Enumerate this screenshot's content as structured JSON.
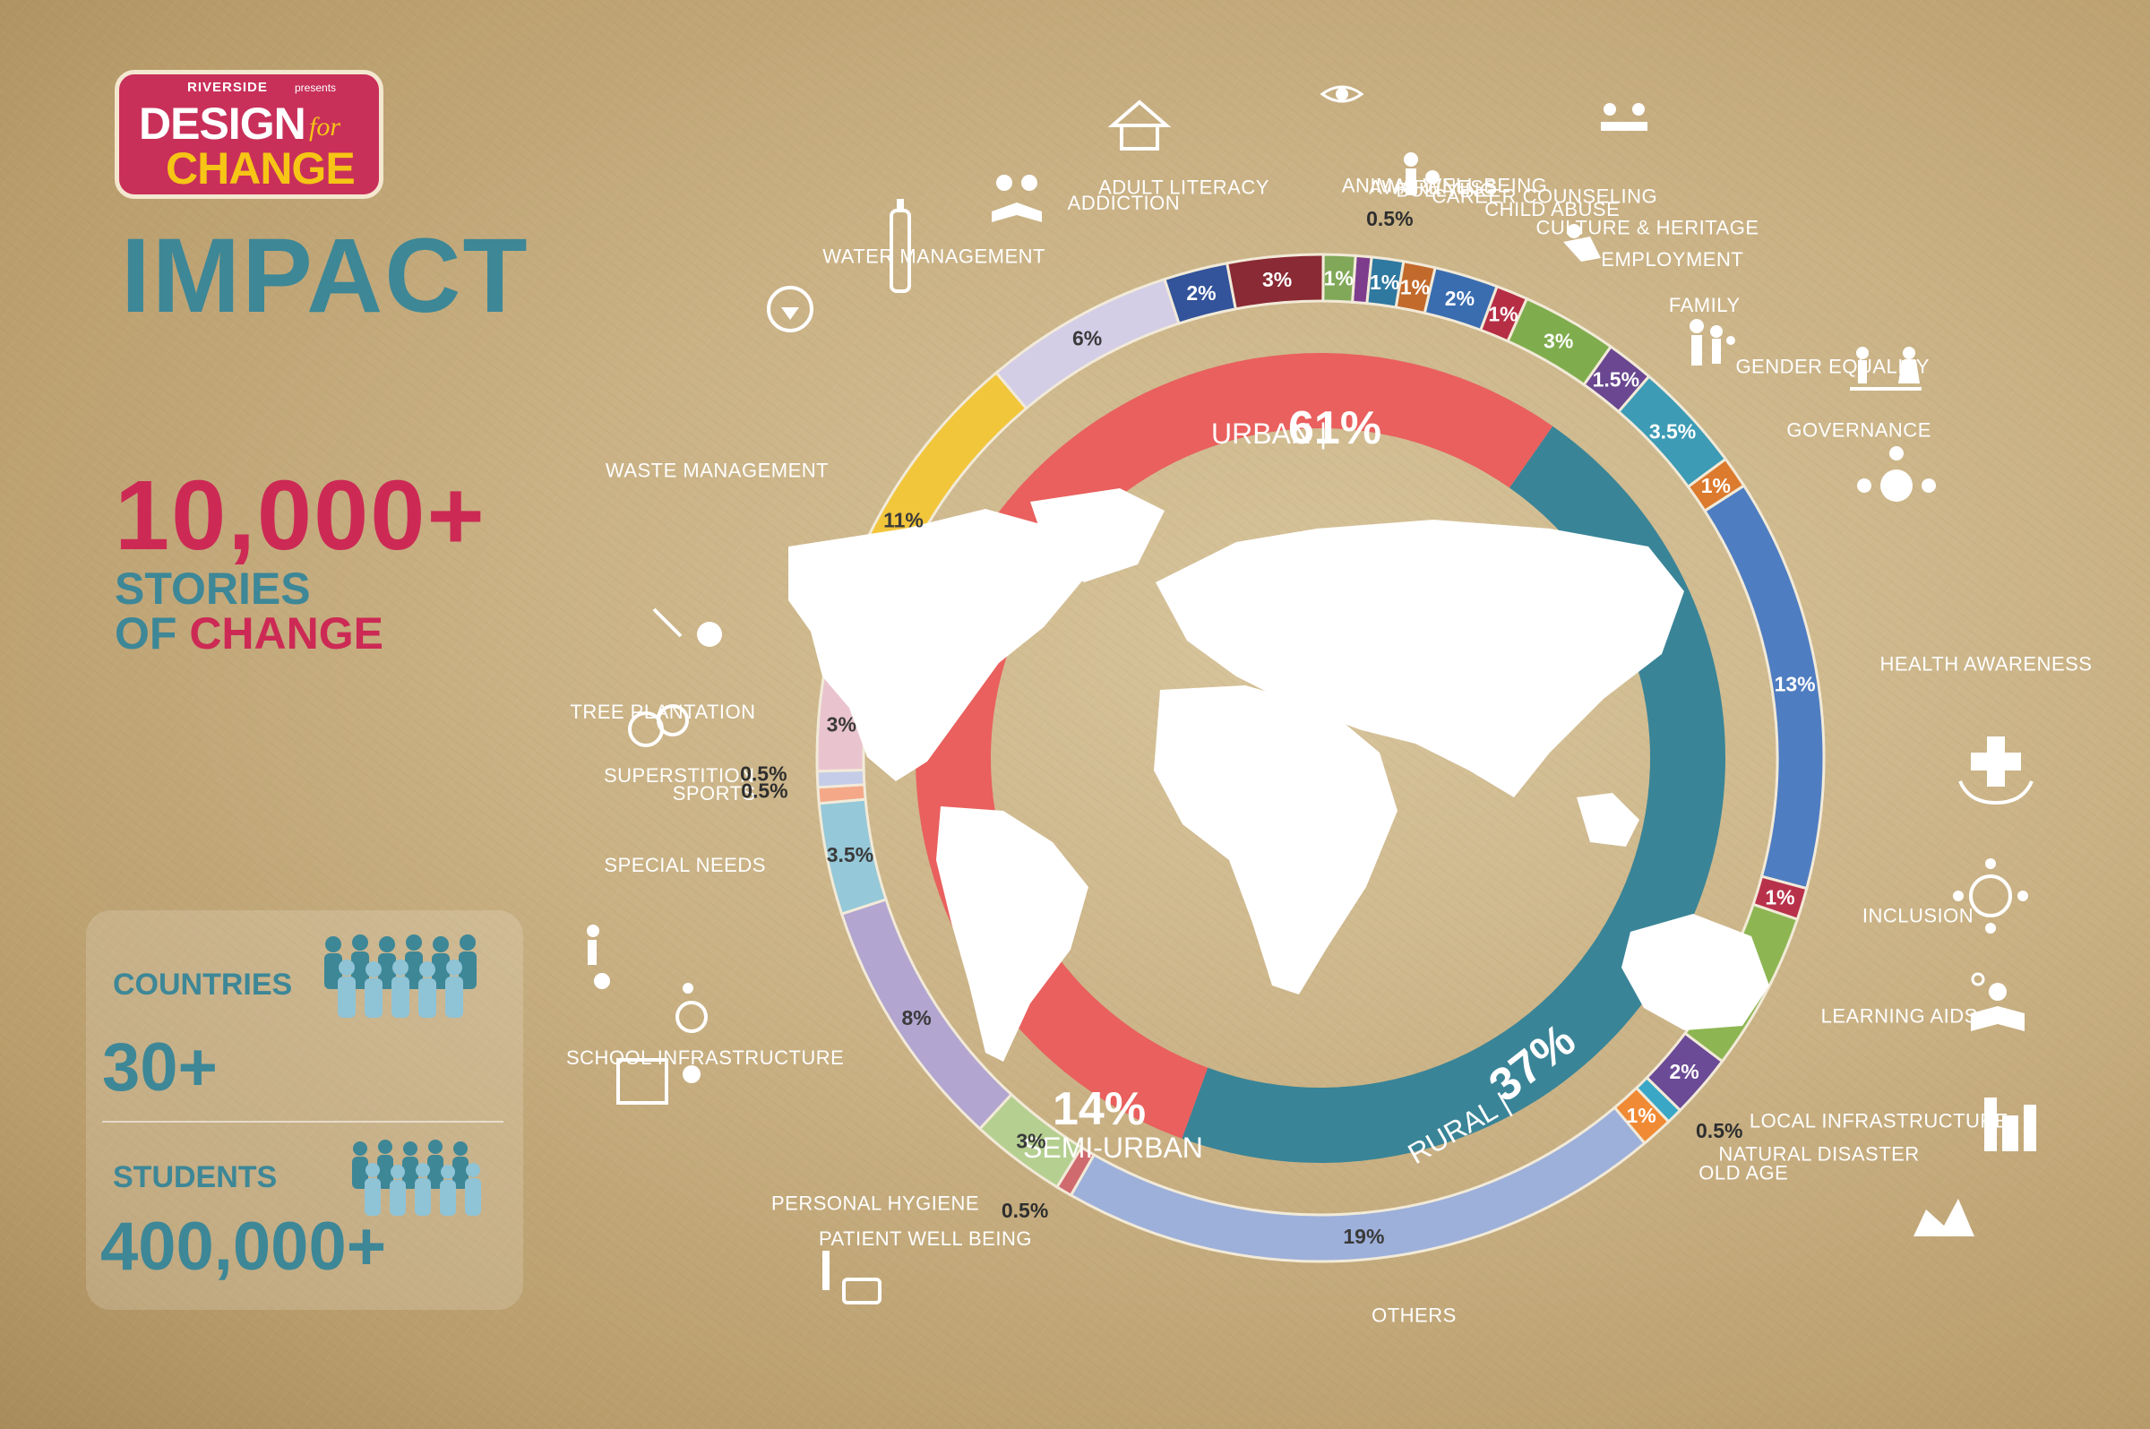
{
  "logo": {
    "brand": "RIVERSIDE",
    "presents": "presents",
    "design": "DESIGN",
    "for": "for",
    "change": "CHANGE"
  },
  "heading": "IMPACT",
  "stories": {
    "count": "10,000+",
    "line1": "STORIES",
    "line2_a": "OF ",
    "line2_b": "CHANGE"
  },
  "stats": {
    "countries_label": "COUNTRIES",
    "countries_value": "30+",
    "students_label": "STUDENTS",
    "students_value": "400,000+"
  },
  "colors": {
    "accent_pink": "#cc2a55",
    "accent_teal": "#3d8797",
    "urban": "#e9605e",
    "rural": "#3a8497",
    "semi_urban": "#e9605e"
  },
  "chart_data": [
    {
      "type": "donut",
      "series": [
        {
          "name": "AWARENESS",
          "value": 0.5,
          "label": "0.5%",
          "color": "#7d3d8c"
        },
        {
          "name": "BULLYING",
          "value": 1,
          "label": "1%",
          "color": "#2f78a0"
        },
        {
          "name": "CAREER COUNSELING",
          "value": 1,
          "label": "1%",
          "color": "#c26a2c"
        },
        {
          "name": "CHILD ABUSE",
          "value": 2,
          "label": "2%",
          "color": "#3a6db0"
        },
        {
          "name": "CULTURE & HERITAGE",
          "value": 1,
          "label": "1%",
          "color": "#b52e44"
        },
        {
          "name": "EMPLOYMENT",
          "value": 3,
          "label": "3%",
          "color": "#7fad4e"
        },
        {
          "name": "FAMILY",
          "value": 1.5,
          "label": "1.5%",
          "color": "#6a4790"
        },
        {
          "name": "GENDER EQUALITY",
          "value": 3.5,
          "label": "3.5%",
          "color": "#3d9bb5"
        },
        {
          "name": "GOVERNANCE",
          "value": 1,
          "label": "1%",
          "color": "#dc7a2e"
        },
        {
          "name": "HEALTH AWARENESS",
          "value": 13,
          "label": "13%",
          "color": "#4f7dc1"
        },
        {
          "name": "INCLUSION",
          "value": 1,
          "label": "1%",
          "color": "#b8314a"
        },
        {
          "name": "LEARNING AIDS",
          "value": 5,
          "label": "5%",
          "color": "#8db652"
        },
        {
          "name": "LOCAL INFRASTRUCTURE",
          "value": 2,
          "label": "2%",
          "color": "#6b4a96"
        },
        {
          "name": "NATURAL DISASTER",
          "value": 0.5,
          "label": "0.5%",
          "color": "#3ba7c7"
        },
        {
          "name": "OLD AGE",
          "value": 1,
          "label": "1%",
          "color": "#f08a34"
        },
        {
          "name": "OTHERS",
          "value": 19,
          "label": "19%",
          "color": "#9db0da"
        },
        {
          "name": "PATIENT WELL BEING",
          "value": 0.5,
          "label": "0.5%",
          "color": "#cf6a6f"
        },
        {
          "name": "PERSONAL HYGIENE",
          "value": 3,
          "label": "3%",
          "color": "#b5cf90"
        },
        {
          "name": "SCHOOL INFRASTRUCTURE",
          "value": 8,
          "label": "8%",
          "color": "#b2a5d0"
        },
        {
          "name": "SPECIAL NEEDS",
          "value": 3.5,
          "label": "3.5%",
          "color": "#95c8d8"
        },
        {
          "name": "SPORTS",
          "value": 0.5,
          "label": "0.5%",
          "color": "#f4a888"
        },
        {
          "name": "SUPERSTITION",
          "value": 0.5,
          "label": "0.5%",
          "color": "#c4cce8"
        },
        {
          "name": "TREE PLANTATION",
          "value": 3,
          "label": "3%",
          "color": "#e9c4ce"
        },
        {
          "name": "WASTE MANAGEMENT",
          "value": 11,
          "label": "11%",
          "color": "#f2c63b"
        },
        {
          "name": "WATER MANAGEMENT",
          "value": 6,
          "label": "6%",
          "color": "#d3cde6"
        },
        {
          "name": "ADDICTION",
          "value": 2,
          "label": "2%",
          "color": "#33539a"
        },
        {
          "name": "ADULT LITERACY",
          "value": 3,
          "label": "3%",
          "color": "#8a2a34"
        },
        {
          "name": "ANIMAL WELL BEING",
          "value": 1,
          "label": "1%",
          "color": "#80a858"
        }
      ]
    },
    {
      "type": "donut",
      "series": [
        {
          "name": "URBAN",
          "value": 61,
          "label": "61%",
          "color": "#e9605e"
        },
        {
          "name": "RURAL",
          "value": 37,
          "label": "37%",
          "color": "#3a8497"
        },
        {
          "name": "SEMI-URBAN",
          "value": 14,
          "label": "14%",
          "color": "#e9605e"
        }
      ]
    }
  ]
}
